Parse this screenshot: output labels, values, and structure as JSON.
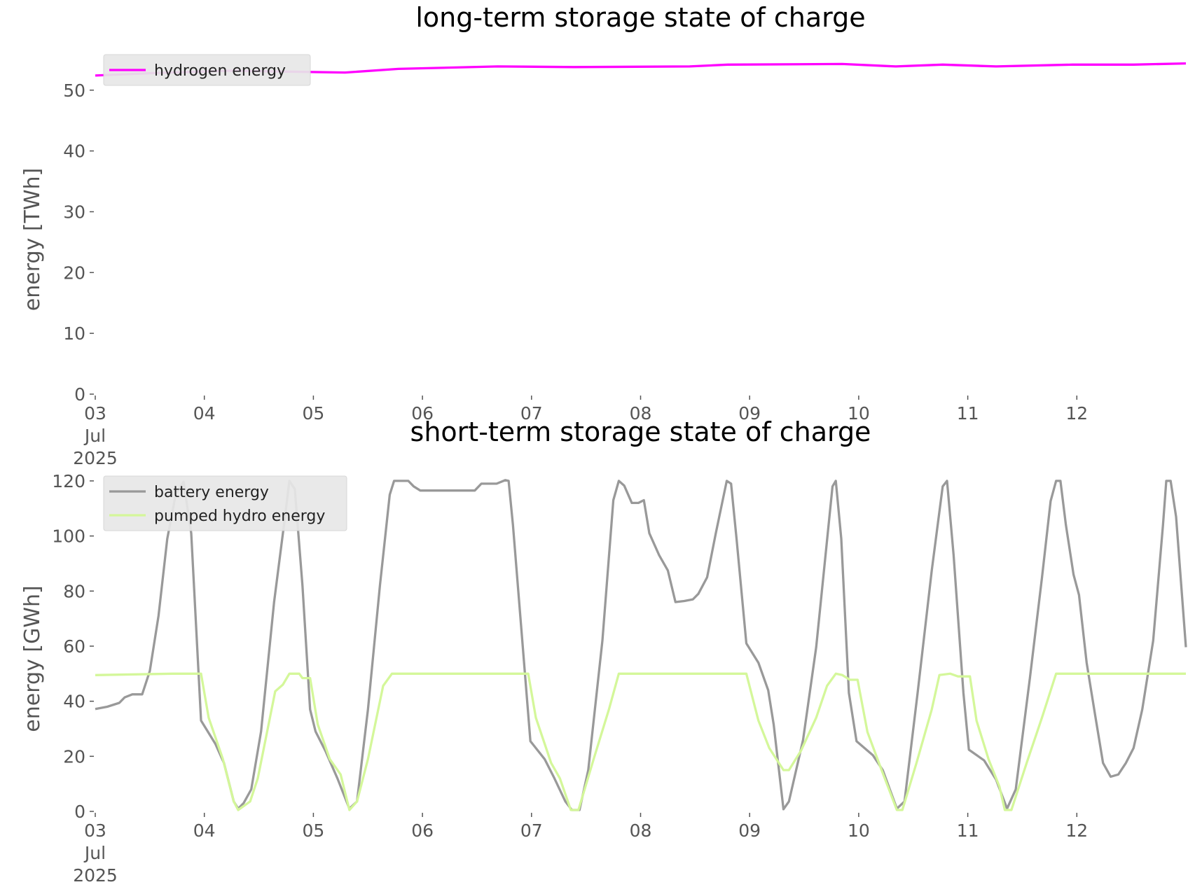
{
  "chart_data": [
    {
      "type": "line",
      "title": "long-term storage state of charge",
      "ylabel": "energy [TWh]",
      "xlim": [
        0,
        10
      ],
      "ylim": [
        0,
        55.5
      ],
      "xticks": [
        {
          "value": 0,
          "label": "03\nJul\n2025"
        },
        {
          "value": 1,
          "label": "04"
        },
        {
          "value": 2,
          "label": "05"
        },
        {
          "value": 3,
          "label": "06"
        },
        {
          "value": 4,
          "label": "07"
        },
        {
          "value": 5,
          "label": "08"
        },
        {
          "value": 6,
          "label": "09"
        },
        {
          "value": 7,
          "label": "10"
        },
        {
          "value": 8,
          "label": "11"
        },
        {
          "value": 9,
          "label": "12"
        }
      ],
      "yticks": [
        0,
        10,
        20,
        30,
        40,
        50
      ],
      "legend": "upper left",
      "series": [
        {
          "name": "hydrogen energy",
          "color": "#ff00ff",
          "x": [
            0,
            0.53,
            1.24,
            2.29,
            2.78,
            3.69,
            4.39,
            5.45,
            5.8,
            6.85,
            7.34,
            7.77,
            8.26,
            8.96,
            9.52,
            10
          ],
          "values": [
            52.4,
            52.8,
            53.2,
            52.9,
            53.5,
            53.9,
            53.8,
            53.9,
            54.2,
            54.3,
            53.9,
            54.2,
            53.9,
            54.2,
            54.2,
            54.4
          ]
        }
      ]
    },
    {
      "type": "line",
      "title": "short-term storage state of charge",
      "ylabel": "energy [GWh]",
      "xlim": [
        0,
        10
      ],
      "ylim": [
        0,
        121
      ],
      "xticks": [
        {
          "value": 0,
          "label": "03\nJul\n2025"
        },
        {
          "value": 1,
          "label": "04"
        },
        {
          "value": 2,
          "label": "05"
        },
        {
          "value": 3,
          "label": "06"
        },
        {
          "value": 4,
          "label": "07"
        },
        {
          "value": 5,
          "label": "08"
        },
        {
          "value": 6,
          "label": "09"
        },
        {
          "value": 7,
          "label": "10"
        },
        {
          "value": 8,
          "label": "11"
        },
        {
          "value": 9,
          "label": "12"
        }
      ],
      "yticks": [
        0,
        20,
        40,
        60,
        80,
        100,
        120
      ],
      "legend": "upper left",
      "series": [
        {
          "name": "battery energy",
          "color": "#999999",
          "x": [
            0,
            0.11,
            0.22,
            0.27,
            0.34,
            0.43,
            0.5,
            0.58,
            0.66,
            0.74,
            0.81,
            0.88,
            0.97,
            1.1,
            1.18,
            1.27,
            1.31,
            1.36,
            1.43,
            1.52,
            1.64,
            1.73,
            1.78,
            1.83,
            1.9,
            1.97,
            2.02,
            2.11,
            2.22,
            2.33,
            2.4,
            2.5,
            2.61,
            2.7,
            2.74,
            2.87,
            2.92,
            2.98,
            3.48,
            3.54,
            3.68,
            3.76,
            3.79,
            3.83,
            3.99,
            4.12,
            4.21,
            4.31,
            4.37,
            4.44,
            4.52,
            4.65,
            4.75,
            4.8,
            4.85,
            4.92,
            4.98,
            5.03,
            5.08,
            5.17,
            5.25,
            5.32,
            5.4,
            5.48,
            5.53,
            5.61,
            5.69,
            5.79,
            5.83,
            5.88,
            5.97,
            6.08,
            6.17,
            6.22,
            6.31,
            6.36,
            6.49,
            6.61,
            6.76,
            6.79,
            6.84,
            6.91,
            6.98,
            7.13,
            7.22,
            7.35,
            7.42,
            7.54,
            7.67,
            7.77,
            7.81,
            7.87,
            7.96,
            8.01,
            8.15,
            8.26,
            8.36,
            8.44,
            8.57,
            8.68,
            8.76,
            8.81,
            8.85,
            8.9,
            8.97,
            9.02,
            9.09,
            9.17,
            9.24,
            9.31,
            9.38,
            9.45,
            9.52,
            9.6,
            9.7,
            9.79,
            9.82,
            9.86,
            9.91,
            10
          ],
          "values": [
            37.2,
            38,
            39.4,
            41.4,
            42.5,
            42.5,
            51,
            71,
            99,
            115.5,
            119.7,
            101,
            33,
            24.6,
            17.6,
            3.6,
            1,
            3,
            8,
            29,
            76,
            104,
            120,
            117,
            82,
            37,
            29,
            22,
            12,
            1,
            3.6,
            37,
            82,
            115,
            120,
            120,
            118,
            116.5,
            116.5,
            119,
            119,
            120.3,
            120,
            104,
            25.5,
            19,
            12,
            3.6,
            0.5,
            0.5,
            15,
            62,
            113,
            120,
            118.3,
            112,
            112,
            113,
            101,
            93,
            87.5,
            76,
            76.4,
            77,
            79,
            85,
            101,
            120,
            119,
            99,
            61,
            54,
            44,
            31.6,
            0.8,
            3.6,
            26,
            59.6,
            118,
            120,
            99,
            43,
            25.5,
            20.4,
            15,
            1,
            3.6,
            43,
            87.5,
            118,
            120,
            93,
            43,
            22.4,
            18.5,
            11.5,
            1,
            8,
            48.4,
            84.8,
            112.7,
            120,
            120,
            104,
            86,
            78.6,
            54,
            34.4,
            17.6,
            12.6,
            13.4,
            17.6,
            23,
            37,
            62,
            104,
            120,
            120,
            107,
            59.6
          ]
        },
        {
          "name": "pumped hydro energy",
          "color": "#d4f79a",
          "x": [
            0,
            0.71,
            0.97,
            1.04,
            1.17,
            1.27,
            1.31,
            1.42,
            1.49,
            1.65,
            1.72,
            1.78,
            1.87,
            1.9,
            1.97,
            2.04,
            2.15,
            2.25,
            2.33,
            2.4,
            2.5,
            2.64,
            2.72,
            3.97,
            4.04,
            4.18,
            4.26,
            4.36,
            4.43,
            4.57,
            4.71,
            4.8,
            5.97,
            6.08,
            6.18,
            6.31,
            6.36,
            6.47,
            6.61,
            6.71,
            6.79,
            6.85,
            6.92,
            6.99,
            7.08,
            7.21,
            7.35,
            7.4,
            7.53,
            7.67,
            7.74,
            7.84,
            7.91,
            8.02,
            8.08,
            8.19,
            8.29,
            8.34,
            8.4,
            8.54,
            8.68,
            8.81,
            10
          ],
          "values": [
            49.5,
            50,
            50,
            34,
            19,
            3.6,
            0.5,
            3.6,
            12,
            43.6,
            46,
            50,
            50,
            48.4,
            48.4,
            31.6,
            19,
            13.4,
            0.5,
            3.6,
            19,
            45.6,
            50,
            50,
            34,
            17.6,
            12,
            0.5,
            0.5,
            19,
            37,
            50,
            50,
            33,
            23,
            15,
            15,
            22,
            34,
            45.6,
            50,
            49.5,
            47.8,
            47.8,
            28.8,
            15,
            0.5,
            0.5,
            17.6,
            37,
            49.5,
            50,
            49,
            49,
            33,
            19,
            9,
            0.5,
            0.5,
            17.6,
            34,
            50,
            50
          ]
        }
      ]
    }
  ]
}
